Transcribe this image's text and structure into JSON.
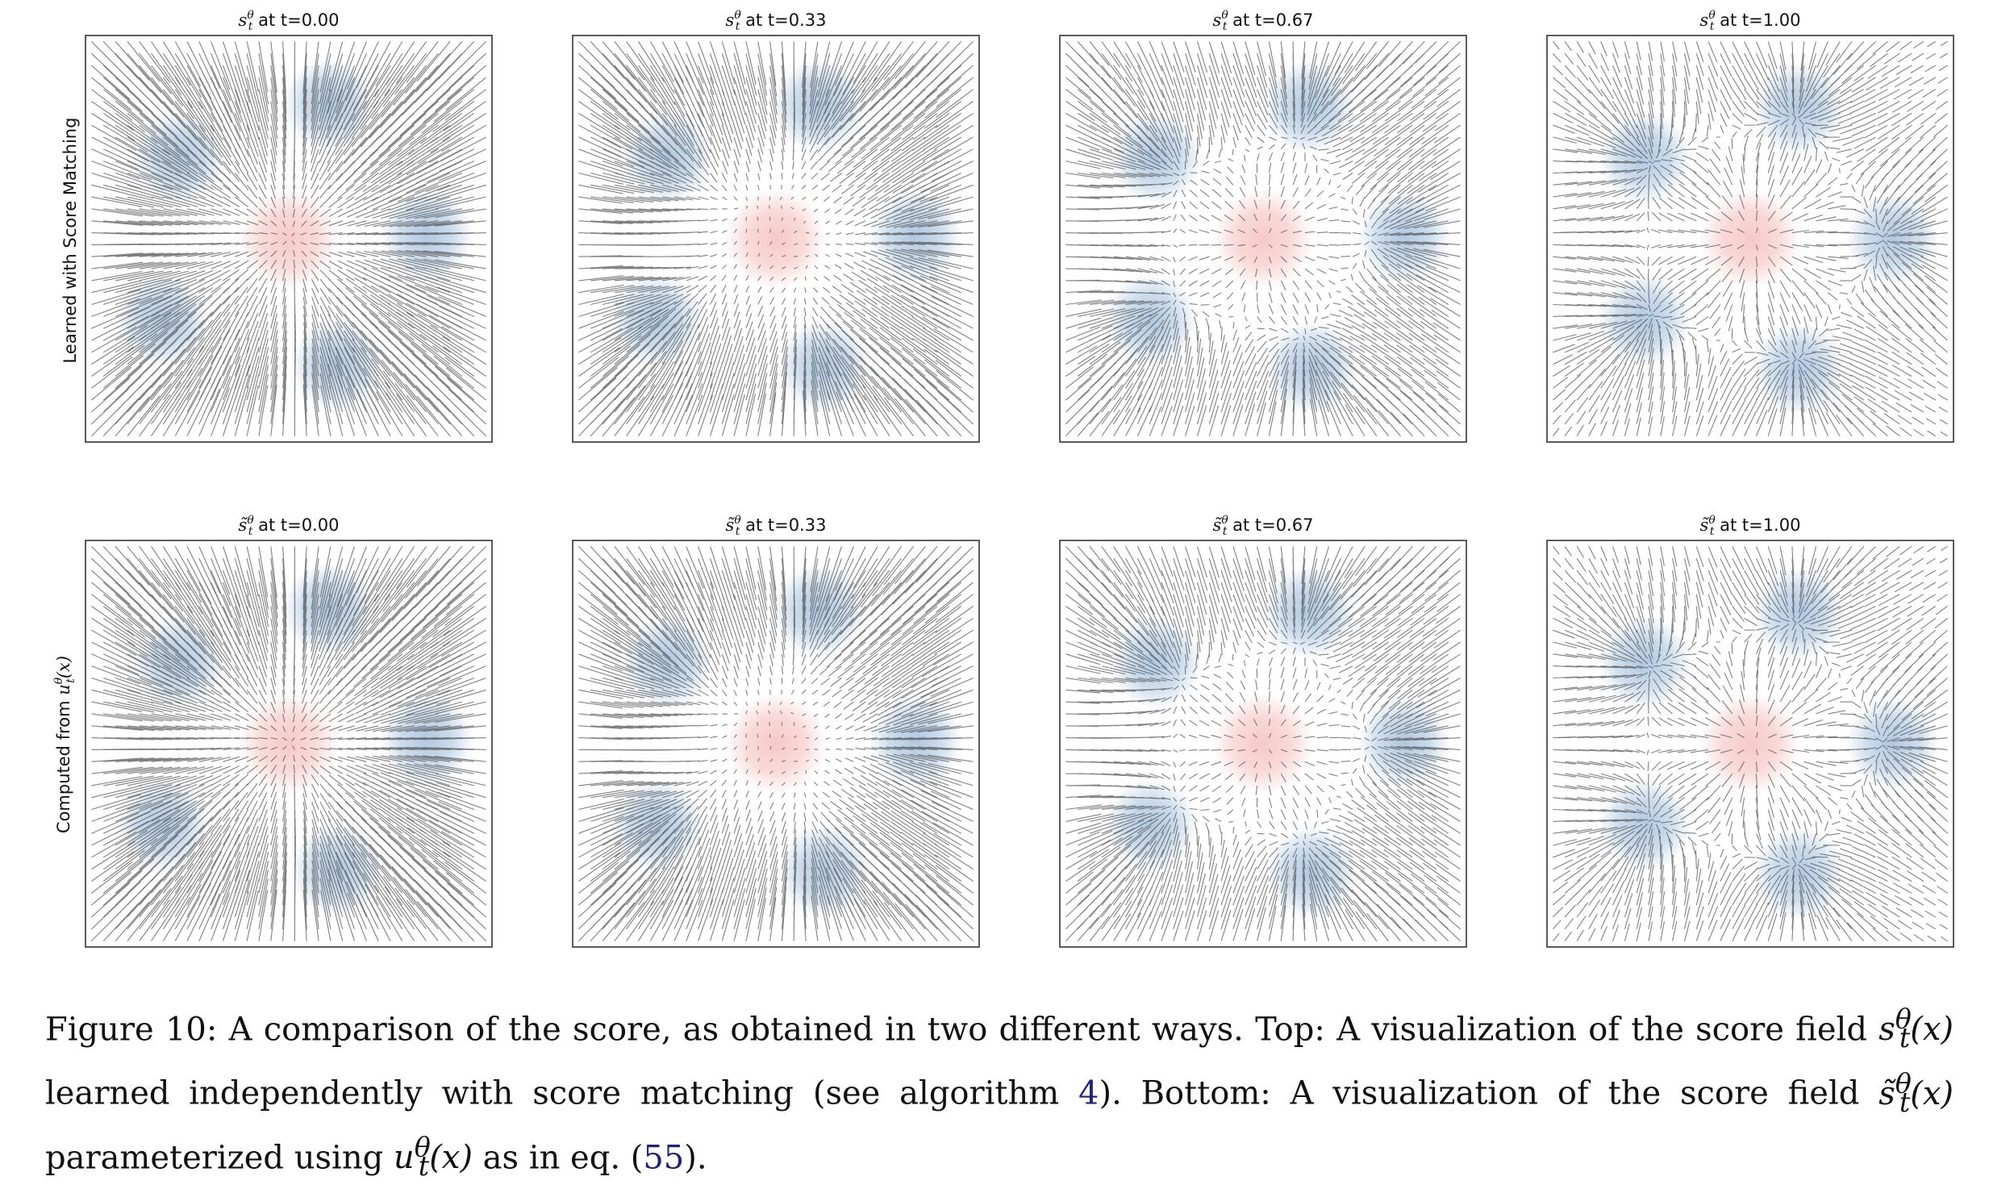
{
  "chart_data": [
    {
      "type": "other",
      "row": 0,
      "col": 0,
      "title_symbol": "s",
      "title_sup": "θ",
      "title_sub": "t",
      "title_suffix": " at t=0.00",
      "t": 0.0
    },
    {
      "type": "other",
      "row": 0,
      "col": 1,
      "title_symbol": "s",
      "title_sup": "θ",
      "title_sub": "t",
      "title_suffix": " at t=0.33",
      "t": 0.33
    },
    {
      "type": "other",
      "row": 0,
      "col": 2,
      "title_symbol": "s",
      "title_sup": "θ",
      "title_sub": "t",
      "title_suffix": " at t=0.67",
      "t": 0.67
    },
    {
      "type": "other",
      "row": 0,
      "col": 3,
      "title_symbol": "s",
      "title_sup": "θ",
      "title_sub": "t",
      "title_suffix": " at t=1.00",
      "t": 1.0
    },
    {
      "type": "other",
      "row": 1,
      "col": 0,
      "title_symbol": "s̃",
      "title_sup": "θ",
      "title_sub": "t",
      "title_suffix": " at t=0.00",
      "t": 0.0
    },
    {
      "type": "other",
      "row": 1,
      "col": 1,
      "title_symbol": "s̃",
      "title_sup": "θ",
      "title_sub": "t",
      "title_suffix": " at t=0.33",
      "t": 0.33
    },
    {
      "type": "other",
      "row": 1,
      "col": 2,
      "title_symbol": "s̃",
      "title_sup": "θ",
      "title_sub": "t",
      "title_suffix": " at t=0.67",
      "t": 0.67
    },
    {
      "type": "other",
      "row": 1,
      "col": 3,
      "title_symbol": "s̃",
      "title_sup": "θ",
      "title_sub": "t",
      "title_suffix": " at t=1.00",
      "t": 1.0
    }
  ],
  "rows": {
    "top_label": "Learned with Score Matching",
    "bottom_label_prefix": "Computed from ",
    "bottom_label_symbol": "u",
    "bottom_label_sup": "θ",
    "bottom_label_sub": "t",
    "bottom_label_arg": "(x)"
  },
  "colors": {
    "target_blob": "#6f9ccb",
    "source_blob": "#ee9d9a",
    "arrow": "#555555"
  },
  "caption": {
    "part1": "Figure 10: A comparison of the score, as obtained in two different ways. Top: A visualization of the score field ",
    "math1": "s",
    "math1_sup": "θ",
    "math1_sub": "t",
    "math1_arg": "(x)",
    "part2": " learned independently with score matching (see algorithm ",
    "ref1": "4",
    "part3": "). Bottom: A visualization of the score field ",
    "math2": "s̃",
    "math2_sup": "θ",
    "math2_sub": "t",
    "math2_arg": "(x)",
    "part4": " parameterized using ",
    "math3": "u",
    "math3_sup": "θ",
    "math3_sub": "t",
    "math3_arg": "(x)",
    "part5": " as in eq. (",
    "ref2": "55",
    "part6": ")."
  }
}
